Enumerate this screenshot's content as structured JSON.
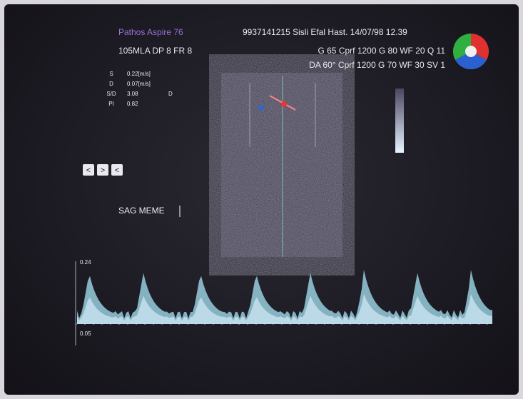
{
  "header": {
    "device": "Pathos Aspire 76",
    "probe": "105MLA DP 8 FR 8",
    "patient": "9937141215 Sisli Efal Hast. 14/07/98 12.39",
    "settings_1": "G 65 Cprf 1200 G 80 WF 20 Q 11",
    "settings_2": "DA 60° Cprf 1200 G 70 WF 30 SV 1"
  },
  "measurements": {
    "rows": [
      [
        "S",
        "0.22[m/s]"
      ],
      [
        "D",
        "0.07[m/s]"
      ],
      [
        "S/D",
        "3.08"
      ],
      [
        "PI",
        "0.82"
      ]
    ],
    "marker": "D"
  },
  "controls": [
    "<",
    ">",
    "<"
  ],
  "annotation": "SAG MEME",
  "doppler": {
    "scale_top": "0.24",
    "scale_bottom": "0.05"
  }
}
